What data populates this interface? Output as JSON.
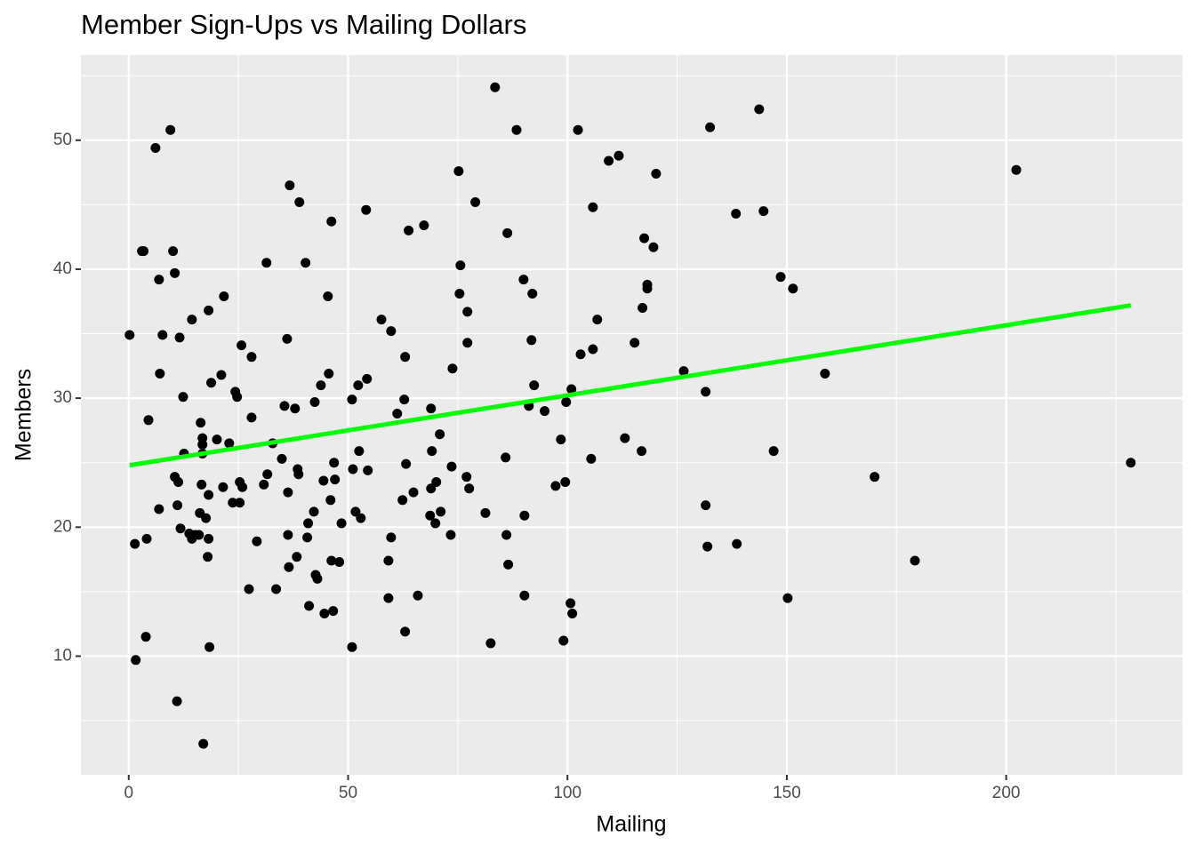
{
  "chart_data": {
    "type": "scatter",
    "title": "Member Sign-Ups vs Mailing Dollars",
    "x_label": "Mailing",
    "y_label": "Members",
    "xlim": [
      -10.9,
      240.2
    ],
    "ylim": [
      0.8,
      56.6
    ],
    "xticks": [
      0,
      50,
      100,
      150,
      200
    ],
    "yticks": [
      10,
      20,
      30,
      40,
      50
    ],
    "x_minor_grid": [
      25,
      75,
      125,
      175,
      225
    ],
    "y_minor_grid": [
      5,
      15,
      25,
      35,
      45,
      55
    ],
    "grid": true,
    "color": "#000000",
    "x": [
      0.2,
      1.4,
      1.6,
      3.0,
      3.4,
      3.9,
      4.1,
      4.5,
      6.1,
      6.9,
      6.9,
      7.1,
      7.7,
      9.5,
      10.1,
      10.5,
      10.5,
      11.0,
      11.1,
      11.3,
      11.6,
      11.8,
      12.4,
      12.6,
      13.8,
      14.4,
      14.4,
      15.2,
      16.0,
      16.2,
      16.4,
      16.6,
      16.8,
      16.8,
      16.8,
      17.0,
      17.6,
      18.0,
      18.2,
      18.2,
      18.2,
      18.4,
      18.8,
      20.1,
      21.1,
      21.5,
      21.7,
      22.9,
      23.7,
      24.3,
      24.7,
      25.3,
      25.3,
      25.7,
      25.9,
      27.4,
      28.0,
      28.0,
      29.2,
      30.8,
      31.4,
      31.6,
      32.8,
      33.6,
      34.9,
      35.5,
      36.1,
      36.3,
      36.3,
      36.5,
      36.7,
      37.9,
      38.3,
      38.5,
      38.7,
      38.9,
      40.3,
      40.7,
      40.9,
      41.1,
      42.2,
      42.4,
      42.6,
      43.0,
      43.8,
      44.4,
      44.6,
      45.4,
      45.6,
      46.0,
      46.2,
      46.2,
      46.6,
      46.8,
      47.0,
      48.0,
      48.5,
      50.9,
      50.9,
      51.1,
      51.7,
      52.3,
      52.5,
      52.9,
      54.3,
      54.1,
      54.5,
      57.6,
      59.2,
      59.2,
      59.8,
      59.8,
      61.2,
      62.4,
      62.8,
      63.0,
      63.2,
      63.0,
      63.8,
      64.9,
      65.9,
      67.3,
      68.7,
      68.9,
      68.9,
      69.1,
      69.9,
      70.1,
      70.9,
      71.1,
      73.4,
      73.6,
      73.8,
      75.2,
      75.4,
      75.6,
      77.0,
      77.2,
      77.2,
      77.6,
      79.0,
      81.3,
      82.5,
      83.5,
      85.9,
      86.1,
      86.3,
      86.5,
      88.4,
      90.0,
      90.2,
      90.2,
      91.2,
      91.8,
      92.0,
      92.4,
      94.8,
      97.3,
      98.5,
      99.1,
      99.5,
      99.7,
      100.9,
      100.7,
      101.1,
      102.4,
      103.0,
      105.4,
      105.8,
      105.8,
      106.8,
      109.4,
      111.7,
      113.1,
      115.3,
      116.9,
      117.1,
      117.5,
      118.2,
      118.2,
      119.6,
      120.2,
      126.5,
      131.5,
      131.5,
      131.9,
      132.5,
      138.4,
      138.6,
      143.7,
      144.7,
      147.0,
      148.6,
      150.2,
      151.4,
      158.7,
      170.0,
      179.2,
      202.3,
      228.4
    ],
    "values": [
      34.9,
      18.7,
      9.7,
      41.4,
      41.4,
      11.5,
      19.1,
      28.3,
      49.4,
      39.2,
      21.4,
      31.9,
      34.9,
      50.8,
      41.4,
      39.7,
      23.9,
      6.5,
      21.7,
      23.5,
      34.7,
      19.9,
      30.1,
      25.7,
      19.5,
      36.1,
      19.1,
      19.4,
      19.4,
      21.1,
      28.1,
      23.3,
      25.7,
      26.9,
      26.4,
      3.2,
      20.7,
      17.7,
      36.8,
      22.5,
      19.1,
      10.7,
      31.2,
      26.8,
      31.8,
      23.1,
      37.9,
      26.5,
      21.9,
      30.5,
      30.1,
      23.5,
      21.9,
      34.1,
      23.1,
      15.2,
      33.2,
      28.5,
      18.9,
      23.3,
      40.5,
      24.1,
      26.5,
      15.2,
      25.3,
      29.4,
      34.6,
      22.7,
      19.4,
      16.9,
      46.5,
      29.2,
      17.7,
      24.5,
      24.1,
      45.2,
      40.5,
      19.2,
      20.3,
      13.9,
      21.2,
      29.7,
      16.3,
      16.0,
      31.0,
      23.6,
      13.3,
      37.9,
      31.9,
      22.1,
      43.7,
      17.4,
      13.5,
      25.0,
      23.7,
      17.3,
      20.3,
      29.9,
      10.7,
      24.5,
      21.2,
      31.0,
      25.9,
      20.7,
      31.5,
      44.6,
      24.4,
      36.1,
      17.4,
      14.5,
      35.2,
      19.2,
      28.8,
      22.1,
      29.9,
      33.2,
      24.9,
      11.9,
      43.0,
      22.7,
      14.7,
      43.4,
      20.9,
      23.0,
      29.2,
      25.9,
      20.3,
      23.5,
      27.2,
      21.2,
      19.4,
      24.7,
      32.3,
      47.6,
      38.1,
      40.3,
      23.9,
      36.7,
      34.3,
      23.0,
      45.2,
      21.1,
      11.0,
      54.1,
      25.4,
      19.4,
      42.8,
      17.1,
      50.8,
      39.2,
      20.9,
      14.7,
      29.4,
      34.5,
      38.1,
      31.0,
      29.0,
      23.2,
      26.8,
      11.2,
      23.5,
      29.7,
      30.7,
      14.1,
      13.3,
      50.8,
      33.4,
      25.3,
      33.8,
      44.8,
      36.1,
      48.4,
      48.8,
      26.9,
      34.3,
      25.9,
      37.0,
      42.4,
      38.8,
      38.5,
      41.7,
      47.4,
      32.1,
      21.7,
      30.5,
      18.5,
      51.0,
      44.3,
      18.7,
      52.4,
      44.5,
      25.9,
      39.4,
      14.5,
      38.5,
      31.9,
      23.9,
      17.4,
      47.7,
      25.0
    ],
    "fit": {
      "x": [
        0.2,
        228.4
      ],
      "values": [
        24.8,
        37.2
      ],
      "color": "#00ff00"
    }
  }
}
